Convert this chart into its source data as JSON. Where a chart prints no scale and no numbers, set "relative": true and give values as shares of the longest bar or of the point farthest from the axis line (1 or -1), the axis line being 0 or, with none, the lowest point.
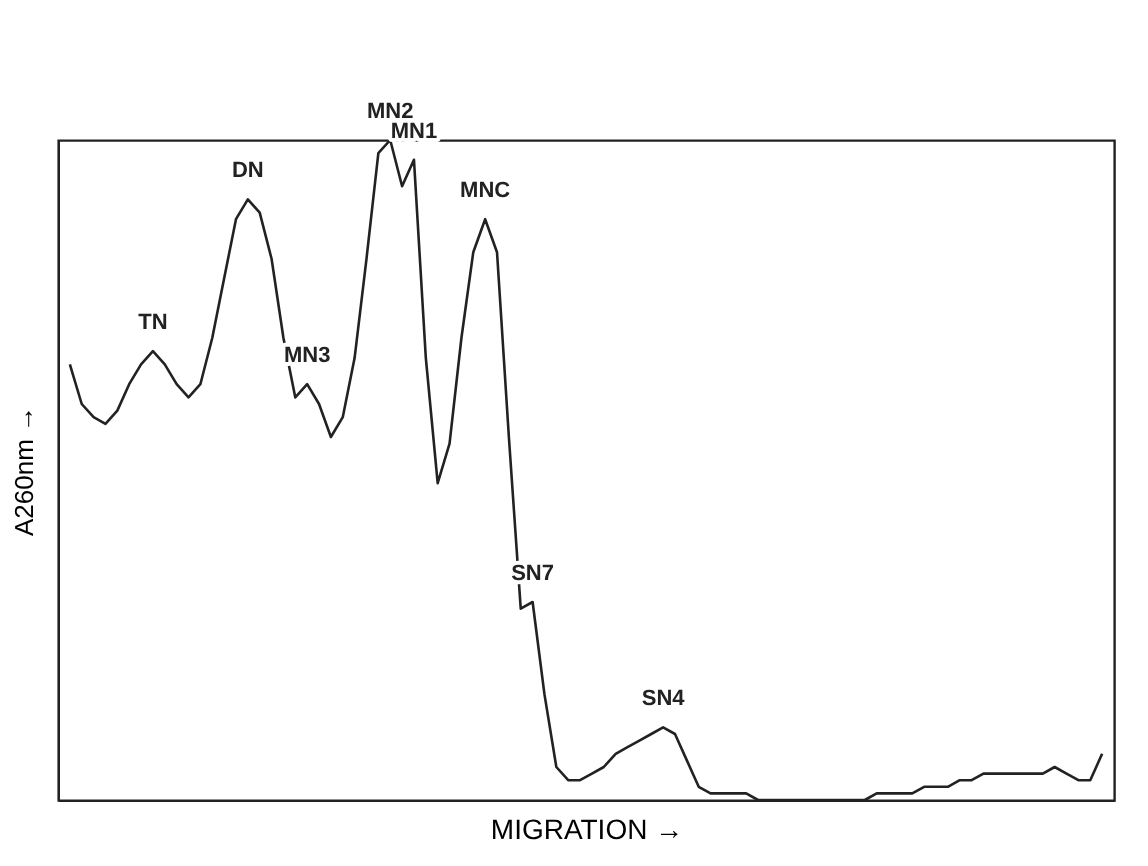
{
  "chart_data": {
    "type": "line",
    "relative": true,
    "xlabel": "MIGRATION →",
    "ylabel": "A260nm →",
    "categories": [
      null,
      null,
      null,
      null,
      null,
      null,
      null,
      null,
      null,
      null,
      null,
      null,
      null,
      null,
      null,
      null,
      null,
      null,
      null,
      null,
      null,
      null,
      null,
      null,
      null,
      null,
      null,
      null,
      null,
      null,
      null,
      null,
      null,
      null,
      null,
      null,
      null,
      null,
      null,
      null,
      null,
      null,
      null,
      null,
      null,
      null,
      null,
      null,
      null,
      null,
      null,
      null,
      null,
      null,
      null,
      null,
      null,
      null,
      null,
      null,
      null,
      null,
      null,
      null,
      null,
      null,
      null,
      null,
      null,
      null,
      null,
      null,
      null,
      null,
      null,
      null,
      null,
      null,
      null,
      null,
      null,
      null,
      null,
      null,
      null,
      null,
      null,
      null
    ],
    "series": [
      {
        "color": "#222222",
        "values": [
          0.66,
          0.6,
          0.58,
          0.57,
          0.59,
          0.63,
          0.66,
          0.68,
          0.66,
          0.63,
          0.61,
          0.63,
          0.7,
          0.79,
          0.88,
          0.91,
          0.89,
          0.82,
          0.7,
          0.61,
          0.63,
          0.6,
          0.55,
          0.58,
          0.67,
          0.82,
          0.98,
          1,
          0.93,
          0.97,
          0.67,
          0.48,
          0.54,
          0.7,
          0.83,
          0.88,
          0.83,
          0.55,
          0.29,
          0.3,
          0.16,
          0.05,
          0.03,
          0.03,
          0.04,
          0.05,
          0.07,
          0.08,
          0.09,
          0.1,
          0.11,
          0.1,
          0.06,
          0.02,
          0.01,
          0.01,
          0.01,
          0.01,
          0,
          0,
          0,
          0,
          0,
          0,
          0,
          0,
          0,
          0,
          0.01,
          0.01,
          0.01,
          0.01,
          0.02,
          0.02,
          0.02,
          0.03,
          0.03,
          0.04,
          0.04,
          0.04,
          0.04,
          0.04,
          0.04,
          0.05,
          0.04,
          0.03,
          0.03,
          0.07
        ]
      }
    ],
    "annotations": [
      "TN",
      "DN",
      "MN3",
      "MN2",
      "MN1",
      "MNC",
      "SN7",
      "SN4"
    ]
  }
}
